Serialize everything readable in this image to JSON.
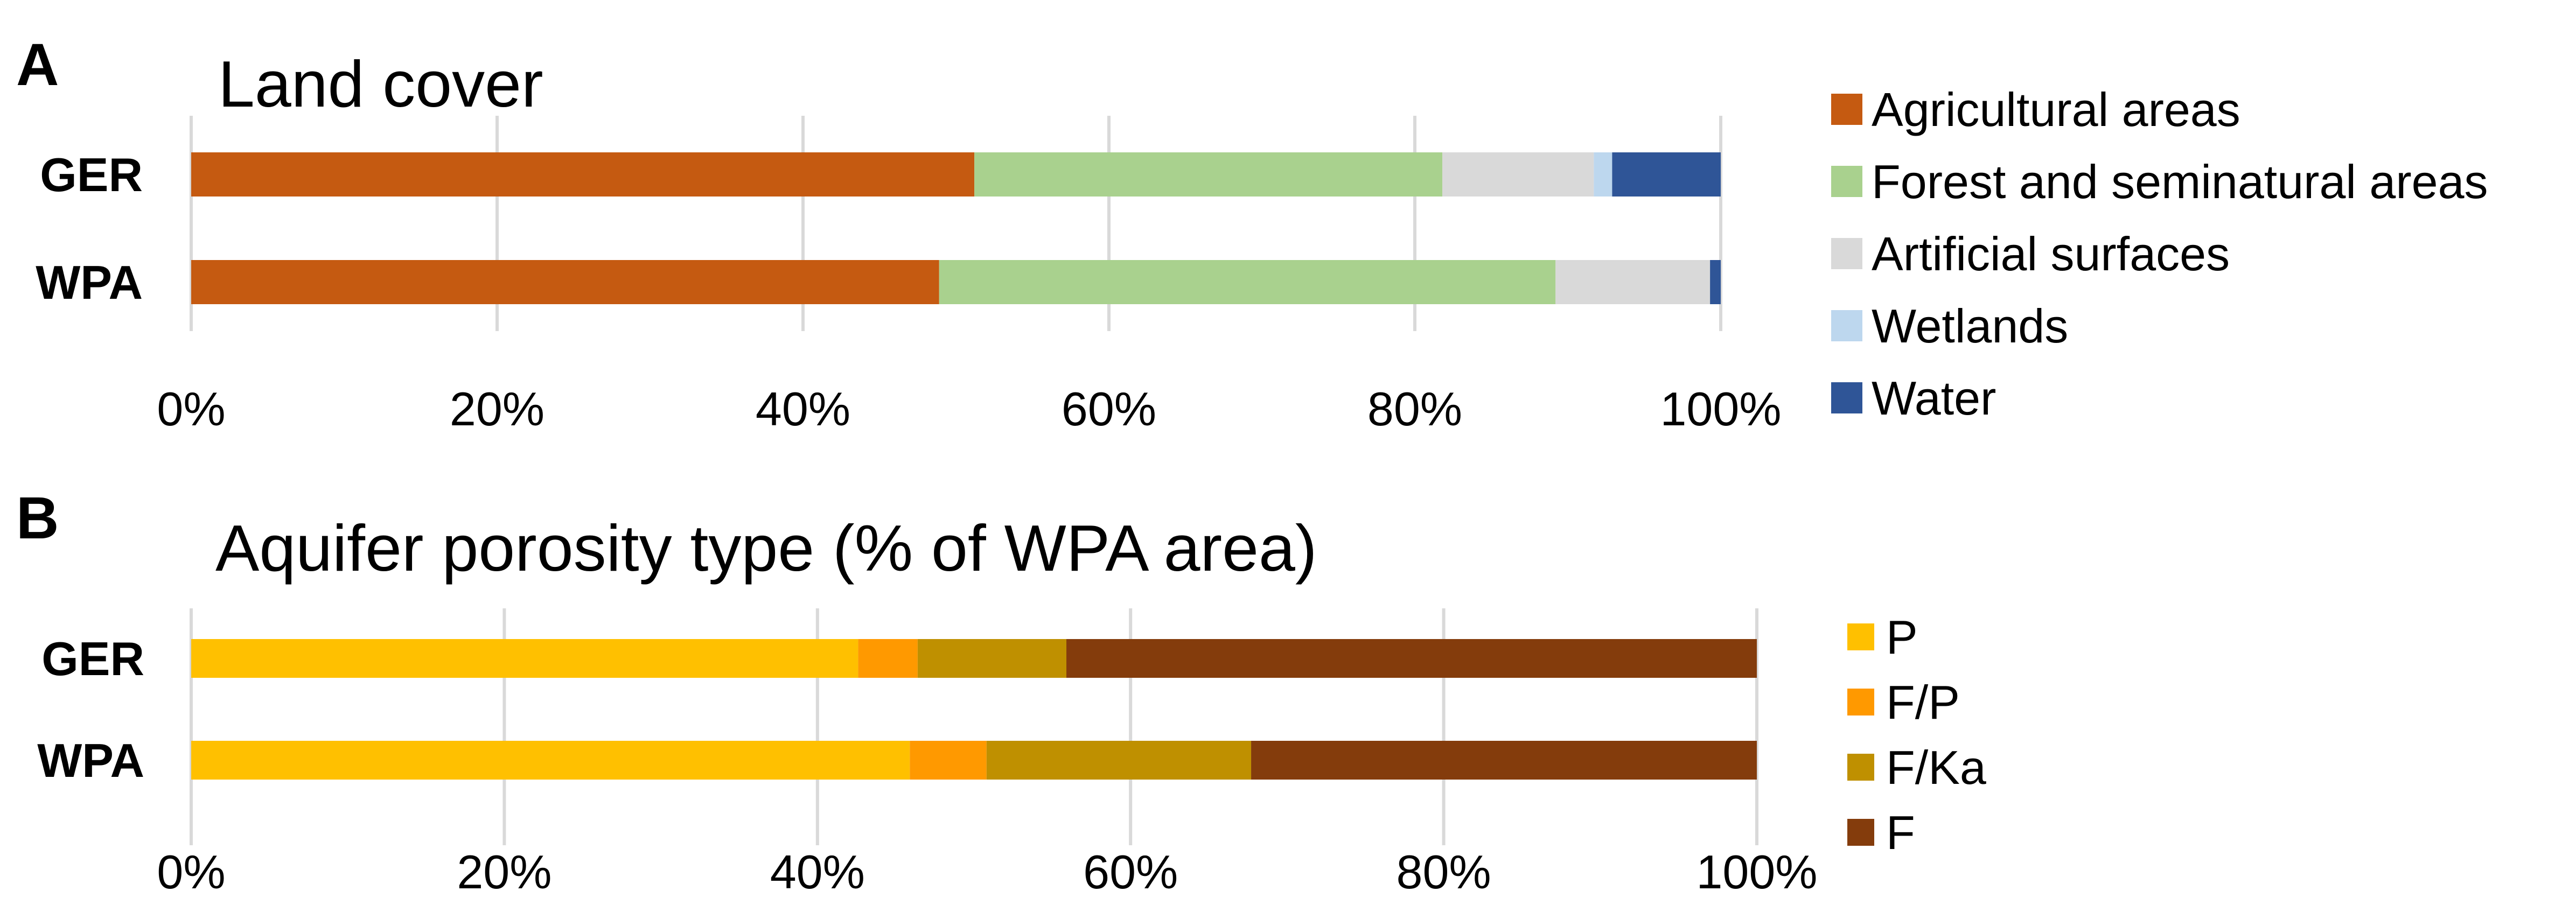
{
  "chart_data": [
    {
      "panel": "A",
      "type": "bar",
      "orientation": "horizontal",
      "stacked": "percent",
      "title": "Land cover",
      "categories": [
        "GER",
        "WPA"
      ],
      "series": [
        {
          "name": "Agricultural areas",
          "color": "#c55a11",
          "values": [
            51.2,
            48.9
          ]
        },
        {
          "name": "Forest and seminatural areas",
          "color": "#a9d18e",
          "values": [
            30.6,
            40.3
          ]
        },
        {
          "name": "Artificial surfaces",
          "color": "#d9d9d9",
          "values": [
            9.9,
            10.1
          ]
        },
        {
          "name": "Wetlands",
          "color": "#bdd7ee",
          "values": [
            1.2,
            0.0
          ]
        },
        {
          "name": "Water",
          "color": "#2f5597",
          "values": [
            7.1,
            0.7
          ]
        }
      ],
      "xlim": [
        0,
        100
      ],
      "xticks": [
        "0%",
        "20%",
        "40%",
        "60%",
        "80%",
        "100%"
      ],
      "grid": true,
      "legend_position": "right"
    },
    {
      "panel": "B",
      "type": "bar",
      "orientation": "horizontal",
      "stacked": "percent",
      "title": "Aquifer porosity type (% of WPA area)",
      "categories": [
        "GER",
        "WPA"
      ],
      "series": [
        {
          "name": "P",
          "color": "#ffc000",
          "values": [
            42.6,
            45.9
          ]
        },
        {
          "name": "F/P",
          "color": "#ff9900",
          "values": [
            3.8,
            4.9
          ]
        },
        {
          "name": "F/Ka",
          "color": "#bf9000",
          "values": [
            9.5,
            16.9
          ]
        },
        {
          "name": "F",
          "color": "#843c0c",
          "values": [
            44.1,
            32.3
          ]
        }
      ],
      "xlim": [
        0,
        100
      ],
      "xticks": [
        "0%",
        "20%",
        "40%",
        "60%",
        "80%",
        "100%"
      ],
      "grid": true,
      "legend_position": "right"
    }
  ]
}
